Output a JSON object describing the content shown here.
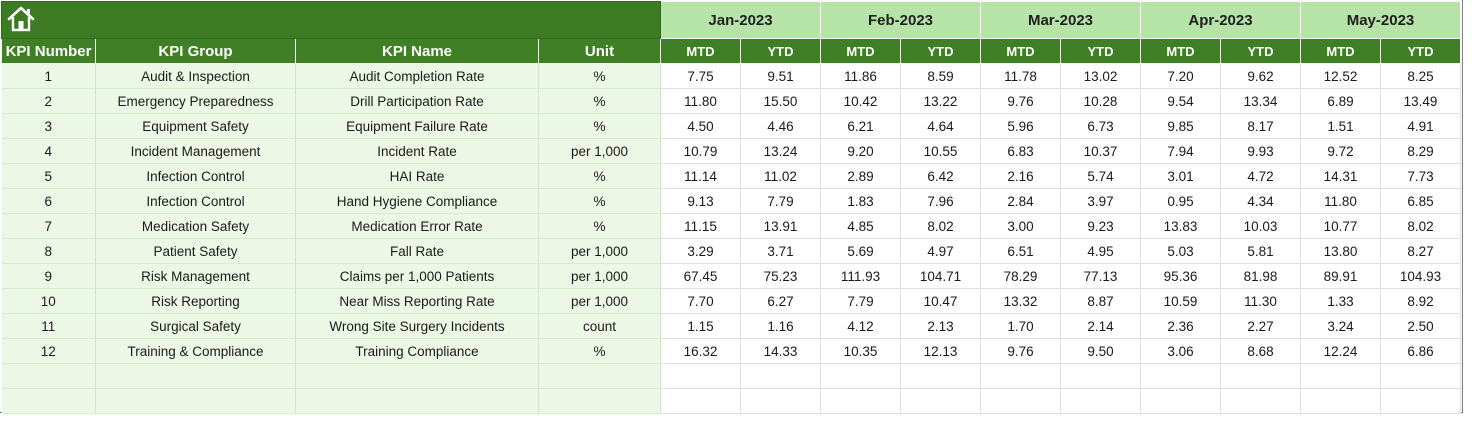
{
  "icons": {
    "home": "home-icon"
  },
  "headers": {
    "kpi_number": "KPI Number",
    "kpi_group": "KPI Group",
    "kpi_name": "KPI Name",
    "unit": "Unit"
  },
  "months": [
    {
      "label": "Jan-2023",
      "mtd": "MTD",
      "ytd": "YTD"
    },
    {
      "label": "Feb-2023",
      "mtd": "MTD",
      "ytd": "YTD"
    },
    {
      "label": "Mar-2023",
      "mtd": "MTD",
      "ytd": "YTD"
    },
    {
      "label": "Apr-2023",
      "mtd": "MTD",
      "ytd": "YTD"
    },
    {
      "label": "May-2023",
      "mtd": "MTD",
      "ytd": "YTD"
    }
  ],
  "rows": [
    {
      "num": "1",
      "group": "Audit & Inspection",
      "name": "Audit Completion Rate",
      "unit": "%",
      "values": [
        "7.75",
        "9.51",
        "11.86",
        "8.59",
        "11.78",
        "13.02",
        "7.20",
        "9.62",
        "12.52",
        "8.25"
      ]
    },
    {
      "num": "2",
      "group": "Emergency Preparedness",
      "name": "Drill Participation Rate",
      "unit": "%",
      "values": [
        "11.80",
        "15.50",
        "10.42",
        "13.22",
        "9.76",
        "10.28",
        "9.54",
        "13.34",
        "6.89",
        "13.49"
      ]
    },
    {
      "num": "3",
      "group": "Equipment Safety",
      "name": "Equipment Failure Rate",
      "unit": "%",
      "values": [
        "4.50",
        "4.46",
        "6.21",
        "4.64",
        "5.96",
        "6.73",
        "9.85",
        "8.17",
        "1.51",
        "4.91"
      ]
    },
    {
      "num": "4",
      "group": "Incident Management",
      "name": "Incident Rate",
      "unit": "per 1,000",
      "values": [
        "10.79",
        "13.24",
        "9.20",
        "10.55",
        "6.83",
        "10.37",
        "7.94",
        "9.93",
        "9.72",
        "8.29"
      ]
    },
    {
      "num": "5",
      "group": "Infection Control",
      "name": "HAI Rate",
      "unit": "%",
      "values": [
        "11.14",
        "11.02",
        "2.89",
        "6.42",
        "2.16",
        "5.74",
        "3.01",
        "4.72",
        "14.31",
        "7.73"
      ]
    },
    {
      "num": "6",
      "group": "Infection Control",
      "name": "Hand Hygiene Compliance",
      "unit": "%",
      "values": [
        "9.13",
        "7.79",
        "1.83",
        "7.96",
        "2.84",
        "3.97",
        "0.95",
        "4.34",
        "11.80",
        "6.85"
      ]
    },
    {
      "num": "7",
      "group": "Medication Safety",
      "name": "Medication Error Rate",
      "unit": "%",
      "values": [
        "11.15",
        "13.91",
        "4.85",
        "8.02",
        "3.00",
        "9.23",
        "13.83",
        "10.03",
        "10.77",
        "8.02"
      ]
    },
    {
      "num": "8",
      "group": "Patient Safety",
      "name": "Fall Rate",
      "unit": "per 1,000",
      "values": [
        "3.29",
        "3.71",
        "5.69",
        "4.97",
        "6.51",
        "4.95",
        "5.03",
        "5.81",
        "13.80",
        "8.27"
      ]
    },
    {
      "num": "9",
      "group": "Risk Management",
      "name": "Claims per 1,000 Patients",
      "unit": "per 1,000",
      "values": [
        "67.45",
        "75.23",
        "111.93",
        "104.71",
        "78.29",
        "77.13",
        "95.36",
        "81.98",
        "89.91",
        "104.93"
      ]
    },
    {
      "num": "10",
      "group": "Risk Reporting",
      "name": "Near Miss Reporting Rate",
      "unit": "per 1,000",
      "values": [
        "7.70",
        "6.27",
        "7.79",
        "10.47",
        "13.32",
        "8.87",
        "10.59",
        "11.30",
        "1.33",
        "8.92"
      ]
    },
    {
      "num": "11",
      "group": "Surgical Safety",
      "name": "Wrong Site Surgery Incidents",
      "unit": "count",
      "values": [
        "1.15",
        "1.16",
        "4.12",
        "2.13",
        "1.70",
        "2.14",
        "2.36",
        "2.27",
        "3.24",
        "2.50"
      ]
    },
    {
      "num": "12",
      "group": "Training & Compliance",
      "name": "Training Compliance",
      "unit": "%",
      "values": [
        "16.32",
        "14.33",
        "10.35",
        "12.13",
        "9.76",
        "9.50",
        "3.06",
        "8.68",
        "12.24",
        "6.86"
      ]
    }
  ],
  "empty_rows": 2,
  "colors": {
    "header_dark_green": "#3f7f25",
    "month_light_green": "#b6e4a8",
    "left_cell_bg": "#ecf7e6"
  }
}
